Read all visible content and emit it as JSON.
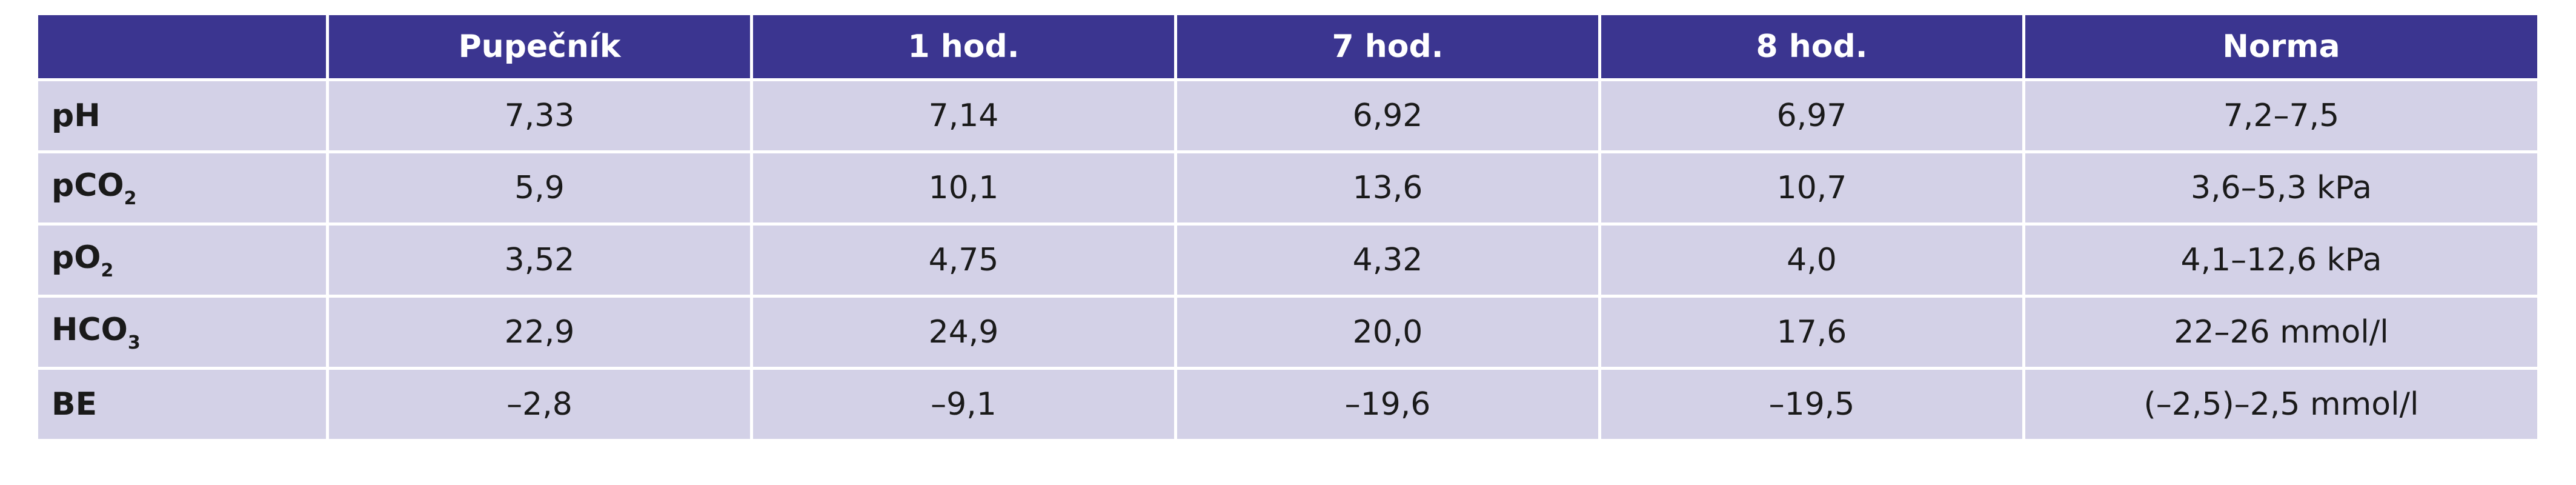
{
  "table": {
    "header": [
      "Pupečník",
      "1 hod.",
      "7 hod.",
      "8 hod.",
      "Norma"
    ],
    "rows": [
      {
        "label": {
          "text": "pH"
        },
        "cells": [
          "7,33",
          "7,14",
          "6,92",
          "6,97",
          "7,2–7,5"
        ]
      },
      {
        "label": {
          "text": "pCO",
          "sub": "2"
        },
        "cells": [
          "5,9",
          "10,1",
          "13,6",
          "10,7",
          "3,6–5,3 kPa"
        ]
      },
      {
        "label": {
          "text": "pO",
          "sub": "2"
        },
        "cells": [
          "3,52",
          "4,75",
          "4,32",
          "4,0",
          "4,1–12,6 kPa"
        ]
      },
      {
        "label": {
          "text": "HCO",
          "sub": "3"
        },
        "cells": [
          "22,9",
          "24,9",
          "20,0",
          "17,6",
          "22–26 mmol/l"
        ]
      },
      {
        "label": {
          "text": "BE"
        },
        "cells": [
          "–2,8",
          "–9,1",
          "–19,6",
          "–19,5",
          "(–2,5)–2,5 mmol/l"
        ]
      }
    ]
  }
}
